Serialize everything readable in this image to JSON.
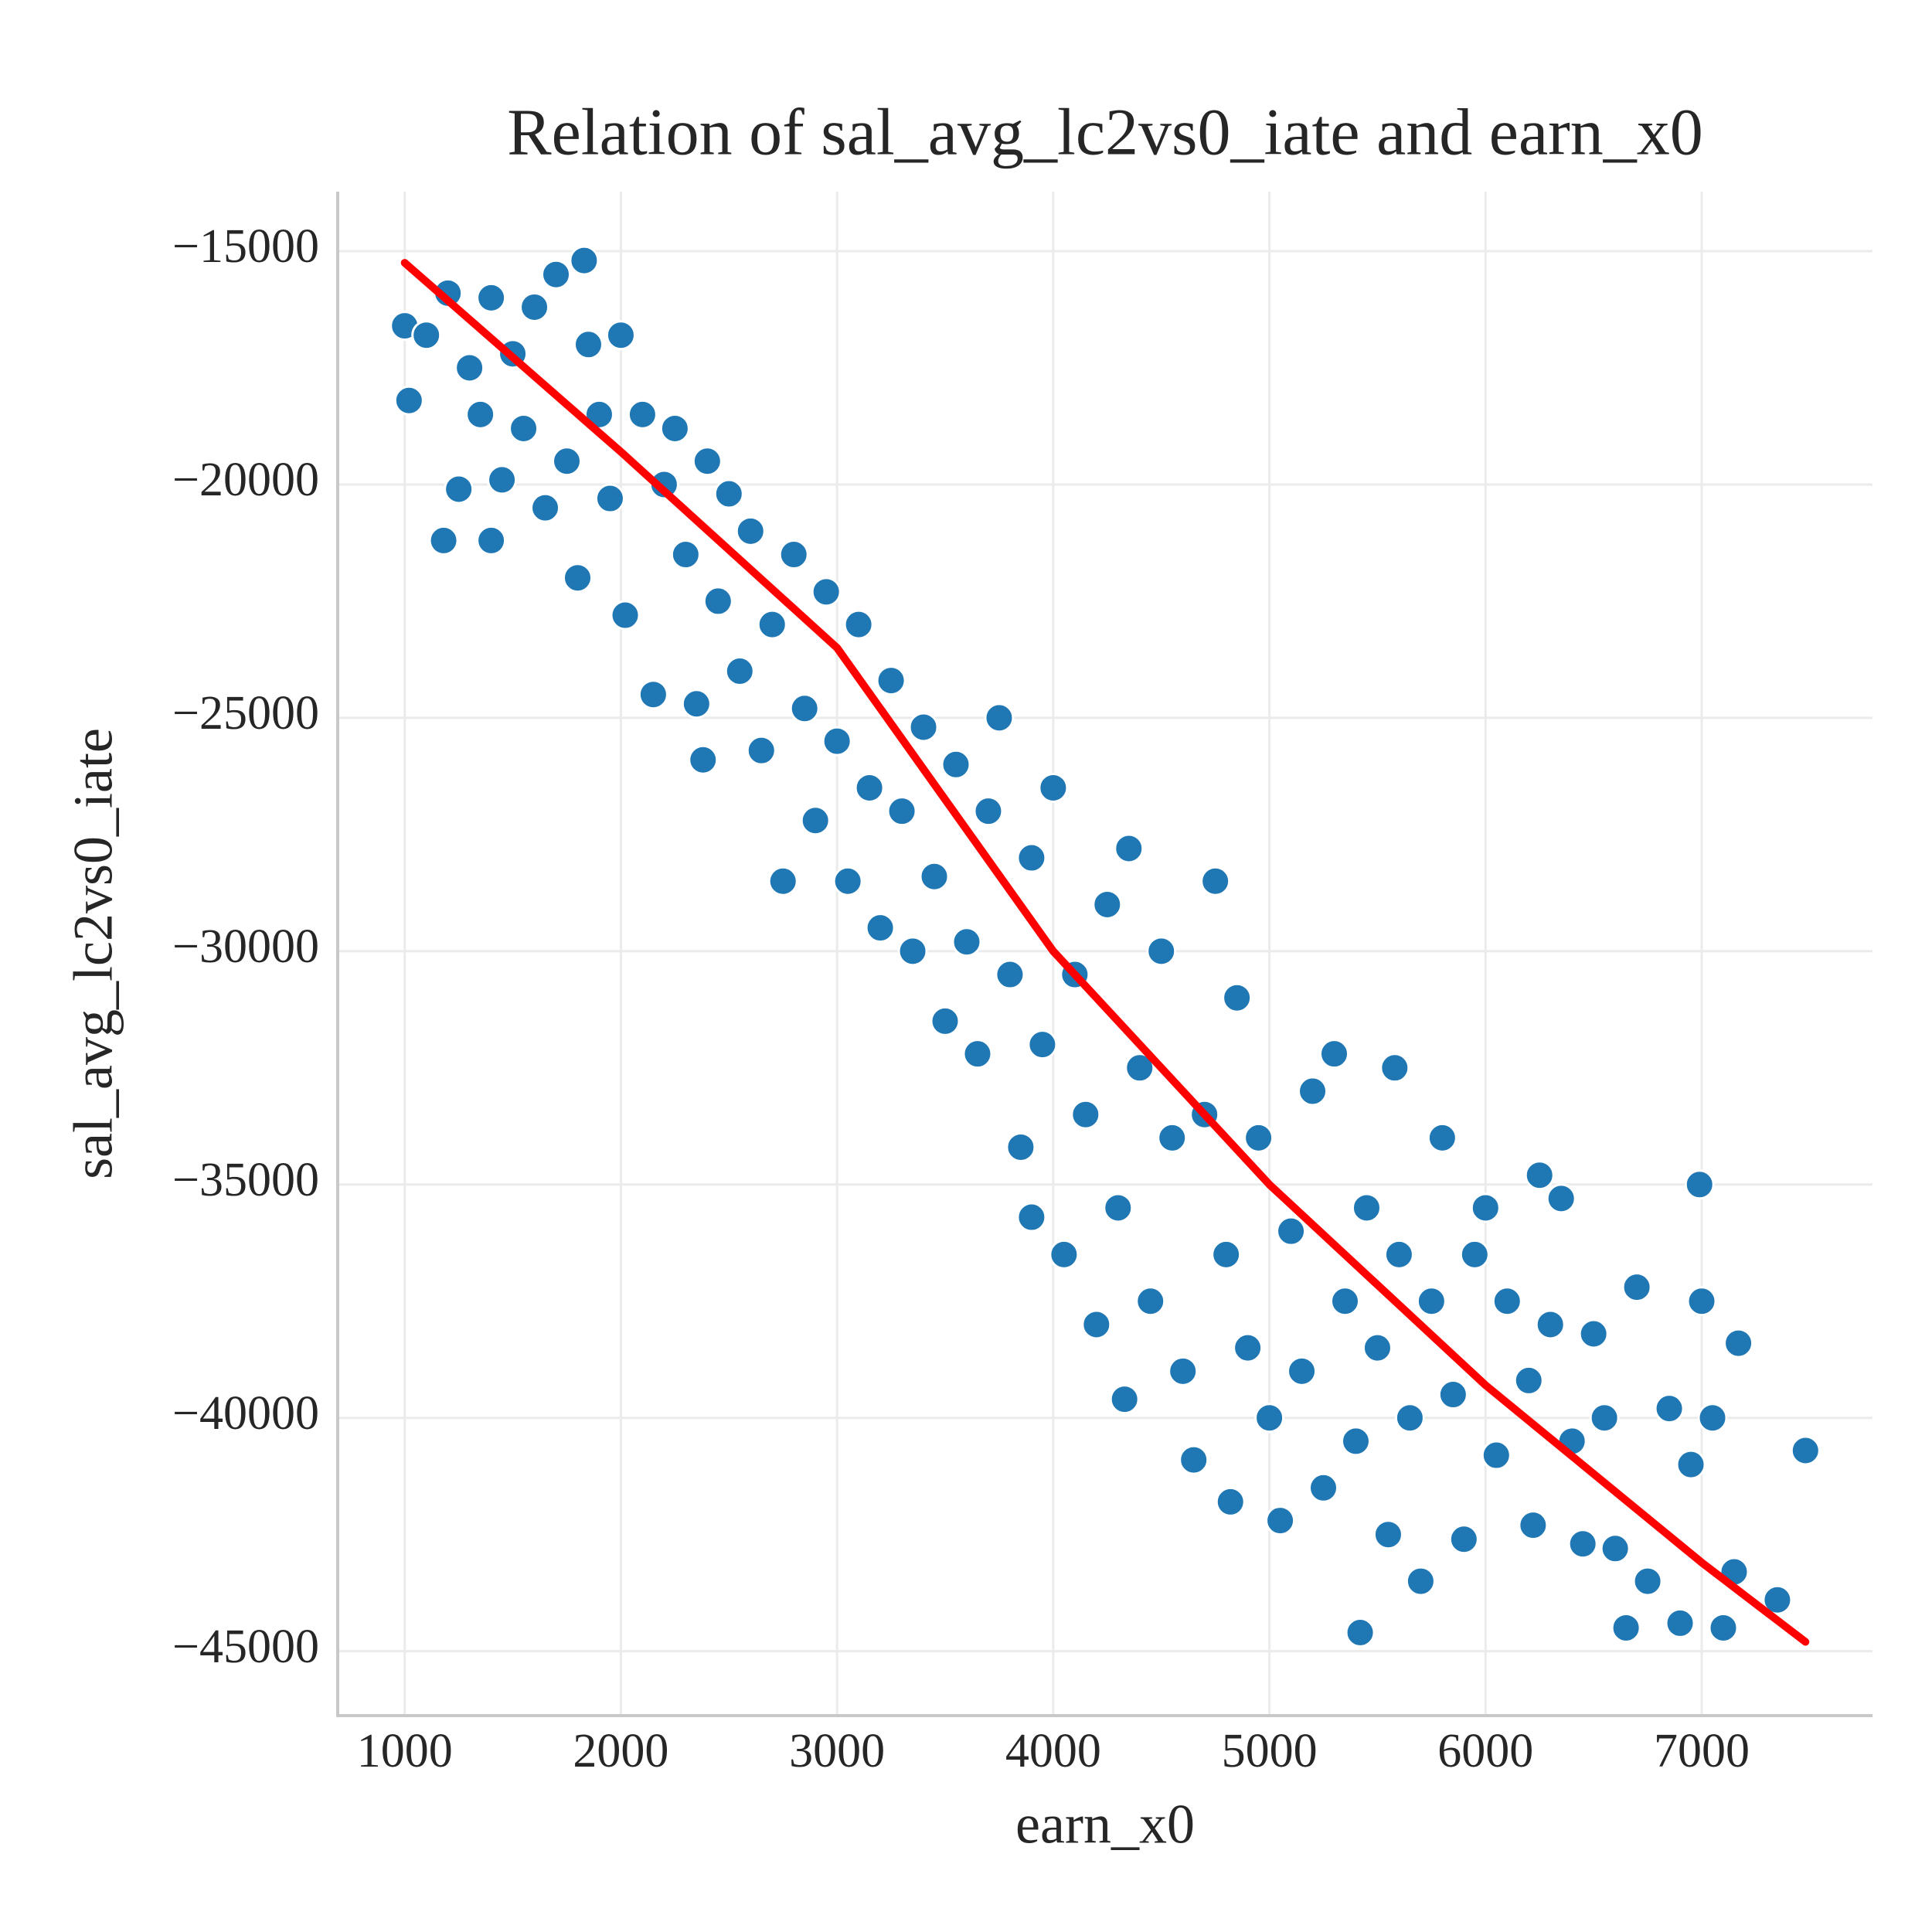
{
  "chart_data": {
    "type": "scatter",
    "title": "Relation of sal_avg_lc2vs0_iate and earn_x0",
    "x_label": "earn_x0",
    "y_label": "sal_avg_lc2vs0_iate",
    "xlim": [
      690,
      7790
    ],
    "ylim": [
      -46380,
      -13725
    ],
    "xticks": [
      1000,
      2000,
      3000,
      4000,
      5000,
      6000,
      7000
    ],
    "yticks": [
      {
        "value": -15000,
        "label": "−15000"
      },
      {
        "value": -20000,
        "label": "−20000"
      },
      {
        "value": -25000,
        "label": "−25000"
      },
      {
        "value": -30000,
        "label": "−30000"
      },
      {
        "value": -35000,
        "label": "−35000"
      },
      {
        "value": -40000,
        "label": "−40000"
      },
      {
        "value": -45000,
        "label": "−45000"
      }
    ],
    "grid": true,
    "color": "#1f77b4",
    "x": [
      1000,
      1020,
      1100,
      1180,
      1200,
      1250,
      1300,
      1350,
      1400,
      1400,
      1450,
      1500,
      1550,
      1600,
      1650,
      1700,
      1750,
      1800,
      1830,
      1850,
      1900,
      1950,
      2000,
      2020,
      2100,
      2150,
      2200,
      2250,
      2300,
      2350,
      2380,
      2400,
      2450,
      2500,
      2550,
      2600,
      2650,
      2700,
      2750,
      2800,
      2850,
      2900,
      2950,
      3000,
      3050,
      3100,
      3150,
      3200,
      3250,
      3300,
      3350,
      3400,
      3450,
      3500,
      3550,
      3600,
      3650,
      3700,
      3750,
      3800,
      3850,
      3900,
      3900,
      3950,
      4000,
      4050,
      4100,
      4150,
      4200,
      4250,
      4300,
      4330,
      4350,
      4400,
      4450,
      4500,
      4550,
      4600,
      4650,
      4700,
      4750,
      4800,
      4820,
      4850,
      4900,
      4950,
      5000,
      5050,
      5100,
      5150,
      5200,
      5250,
      5300,
      5350,
      5400,
      5420,
      5450,
      5500,
      5550,
      5580,
      5600,
      5650,
      5700,
      5750,
      5800,
      5850,
      5900,
      5950,
      6000,
      6050,
      6100,
      6200,
      6220,
      6250,
      6300,
      6350,
      6400,
      6450,
      6500,
      6550,
      6600,
      6650,
      6700,
      6750,
      6850,
      6900,
      6950,
      6990,
      7000,
      7050,
      7100,
      7150,
      7170,
      7350,
      7480
    ],
    "values": [
      -16600,
      -18200,
      -16800,
      -21200,
      -15900,
      -20100,
      -17500,
      -18500,
      -16000,
      -21200,
      -19900,
      -17200,
      -18800,
      -16200,
      -20500,
      -15500,
      -19500,
      -22000,
      -15200,
      -17000,
      -18500,
      -20300,
      -16800,
      -22800,
      -18500,
      -24500,
      -20000,
      -18800,
      -21500,
      -24700,
      -25900,
      -19500,
      -22500,
      -20200,
      -24000,
      -21000,
      -25700,
      -23000,
      -28500,
      -21500,
      -24800,
      -27200,
      -22300,
      -25500,
      -28500,
      -23000,
      -26500,
      -29500,
      -24200,
      -27000,
      -30000,
      -25200,
      -28400,
      -31500,
      -26000,
      -29800,
      -32200,
      -27000,
      -25000,
      -30500,
      -34200,
      -28000,
      -35700,
      -32000,
      -26500,
      -36500,
      -30500,
      -33500,
      -38000,
      -29000,
      -35500,
      -39600,
      -27800,
      -32500,
      -37500,
      -30000,
      -34000,
      -39000,
      -40900,
      -33500,
      -28500,
      -36500,
      -41800,
      -31000,
      -38500,
      -34000,
      -40000,
      -42200,
      -36000,
      -39000,
      -33000,
      -41500,
      -32200,
      -37500,
      -40500,
      -44600,
      -35500,
      -38500,
      -42500,
      -32500,
      -36500,
      -40000,
      -43500,
      -37500,
      -34000,
      -39500,
      -42600,
      -36500,
      -35500,
      -40800,
      -37500,
      -39200,
      -42300,
      -34800,
      -38000,
      -35300,
      -40500,
      -42700,
      -38200,
      -40000,
      -42800,
      -44500,
      -37200,
      -43500,
      -39800,
      -44400,
      -41000,
      -35000,
      -37500,
      -40000,
      -44500,
      -43300,
      -38400,
      -43900,
      -40700
    ],
    "fit_line": {
      "color": "#ff0000",
      "x": [
        1000,
        2000,
        3000,
        4000,
        5000,
        6000,
        7000,
        7480
      ],
      "values": [
        -15250,
        -19300,
        -23500,
        -30000,
        -35000,
        -39300,
        -43100,
        -44800
      ]
    }
  }
}
